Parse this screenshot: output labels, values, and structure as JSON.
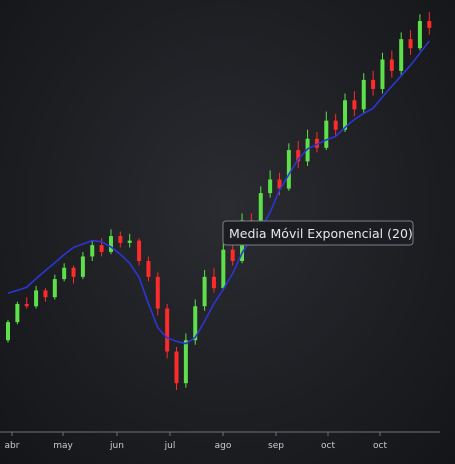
{
  "chart_data": {
    "type": "candlestick",
    "x_axis": {
      "tick_labels": [
        "abr",
        "may",
        "jun",
        "jul",
        "ago",
        "sep",
        "oct",
        "oct"
      ]
    },
    "series": [
      {
        "name": "Media Móvil Exponencial (20)",
        "kind": "line",
        "values": [
          0.78,
          0.9,
          1.04,
          1.42,
          1.78,
          2.12,
          2.48,
          2.8,
          2.95,
          3.1,
          3.05,
          2.82,
          2.5,
          2.1,
          1.48,
          0.32,
          -0.75,
          -1.2,
          -1.35,
          -1.45,
          -1.18,
          -0.46,
          0.32,
          0.95,
          1.65,
          2.55,
          3.2,
          3.62,
          4.35,
          5.32,
          6.02,
          6.7,
          7.15,
          7.35,
          7.55,
          7.7,
          8.1,
          8.45,
          8.72,
          8.95,
          9.45,
          9.92,
          10.38,
          10.85,
          11.38,
          11.92
        ]
      }
    ],
    "candles_ohlc": [
      [
        -1.3,
        -0.5,
        -1.4,
        -0.4
      ],
      [
        -0.5,
        0.3,
        -0.6,
        0.4
      ],
      [
        0.3,
        0.2,
        0.1,
        0.6
      ],
      [
        0.2,
        0.9,
        0.1,
        1.1
      ],
      [
        0.9,
        0.6,
        0.4,
        1.0
      ],
      [
        0.6,
        1.4,
        0.5,
        1.6
      ],
      [
        1.4,
        1.9,
        1.3,
        2.1
      ],
      [
        1.9,
        1.5,
        1.2,
        2.0
      ],
      [
        1.5,
        2.4,
        1.4,
        2.6
      ],
      [
        2.4,
        2.9,
        2.2,
        3.1
      ],
      [
        2.9,
        2.6,
        2.4,
        3.2
      ],
      [
        2.6,
        3.3,
        2.5,
        3.6
      ],
      [
        3.3,
        3.0,
        2.8,
        3.5
      ],
      [
        3.0,
        3.1,
        2.8,
        3.4
      ],
      [
        3.1,
        2.2,
        2.0,
        3.2
      ],
      [
        2.2,
        1.5,
        1.3,
        2.4
      ],
      [
        1.5,
        0.1,
        -0.2,
        1.7
      ],
      [
        0.1,
        -1.8,
        -2.1,
        0.3
      ],
      [
        -1.8,
        -3.2,
        -3.5,
        -1.6
      ],
      [
        -3.2,
        -1.3,
        -3.4,
        -1.0
      ],
      [
        -1.3,
        0.2,
        -1.5,
        0.5
      ],
      [
        0.2,
        1.5,
        0.0,
        1.8
      ],
      [
        1.5,
        1.0,
        0.8,
        1.9
      ],
      [
        1.0,
        2.7,
        0.9,
        3.0
      ],
      [
        2.7,
        2.2,
        2.0,
        3.1
      ],
      [
        2.2,
        4.0,
        2.1,
        4.3
      ],
      [
        4.0,
        3.6,
        3.3,
        4.3
      ],
      [
        3.6,
        5.2,
        3.5,
        5.5
      ],
      [
        5.2,
        5.8,
        5.0,
        6.2
      ],
      [
        5.8,
        5.4,
        5.1,
        6.1
      ],
      [
        5.4,
        7.1,
        5.3,
        7.4
      ],
      [
        7.1,
        6.6,
        6.3,
        7.5
      ],
      [
        6.6,
        7.6,
        6.4,
        8.0
      ],
      [
        7.6,
        7.2,
        7.0,
        7.9
      ],
      [
        7.2,
        8.4,
        7.1,
        8.8
      ],
      [
        8.4,
        8.0,
        7.7,
        8.7
      ],
      [
        8.0,
        9.3,
        7.9,
        9.6
      ],
      [
        9.3,
        8.9,
        8.6,
        9.7
      ],
      [
        8.9,
        10.2,
        8.7,
        10.5
      ],
      [
        10.2,
        9.8,
        9.5,
        10.6
      ],
      [
        9.8,
        11.1,
        9.6,
        11.4
      ],
      [
        11.1,
        10.6,
        10.3,
        11.5
      ],
      [
        10.6,
        12.0,
        10.4,
        12.3
      ],
      [
        12.0,
        11.6,
        11.3,
        12.4
      ],
      [
        11.6,
        12.8,
        11.5,
        13.1
      ],
      [
        12.8,
        12.5,
        12.2,
        13.2
      ]
    ],
    "tooltip": "Media Móvil Exponencial (20)"
  },
  "colors": {
    "up": "#5ee04a",
    "down": "#ff2a2a",
    "ema": "#2c35d6",
    "axis": "#6f7278",
    "grid": "#2a2d33",
    "tooltip_bg": "#1b1d22",
    "tooltip_border": "#7b7f87"
  }
}
